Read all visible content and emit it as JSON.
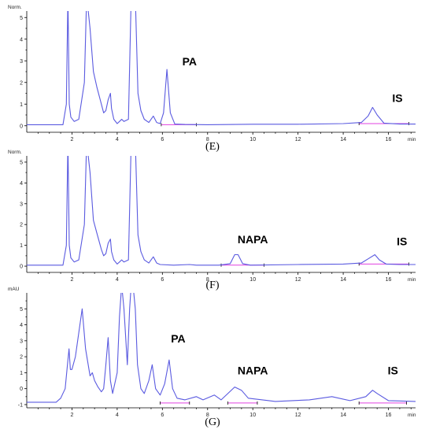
{
  "chart_data": [
    {
      "type": "line",
      "caption": "(E)",
      "ylabel": "Norm.",
      "xlabel": "min",
      "xlim": [
        0,
        17.2
      ],
      "ylim": [
        -0.3,
        5.3
      ],
      "x_ticks": [
        2,
        4,
        6,
        8,
        10,
        12,
        14,
        16
      ],
      "y_ticks": [
        0,
        1,
        2,
        3,
        4,
        5
      ],
      "annotations": [
        {
          "text": "PA",
          "x": 7.2,
          "y": 2.8
        },
        {
          "text": "IS",
          "x": 16.4,
          "y": 1.1
        }
      ],
      "series": [
        {
          "points": [
            [
              0.0,
              0.05
            ],
            [
              1.6,
              0.05
            ],
            [
              1.75,
              1.0
            ],
            [
              1.82,
              6.0
            ],
            [
              1.88,
              1.0
            ],
            [
              1.95,
              0.4
            ],
            [
              2.1,
              0.2
            ],
            [
              2.3,
              0.3
            ],
            [
              2.55,
              2.0
            ],
            [
              2.65,
              6.0
            ],
            [
              2.8,
              4.5
            ],
            [
              2.95,
              2.5
            ],
            [
              3.1,
              1.8
            ],
            [
              3.3,
              1.0
            ],
            [
              3.4,
              0.6
            ],
            [
              3.5,
              0.7
            ],
            [
              3.6,
              1.2
            ],
            [
              3.7,
              1.5
            ],
            [
              3.75,
              0.8
            ],
            [
              3.85,
              0.3
            ],
            [
              4.0,
              0.1
            ],
            [
              4.1,
              0.2
            ],
            [
              4.2,
              0.3
            ],
            [
              4.3,
              0.2
            ],
            [
              4.5,
              0.3
            ],
            [
              4.62,
              6.0
            ],
            [
              4.8,
              6.0
            ],
            [
              4.92,
              1.5
            ],
            [
              5.05,
              0.7
            ],
            [
              5.2,
              0.3
            ],
            [
              5.4,
              0.15
            ],
            [
              5.6,
              0.45
            ],
            [
              5.75,
              0.15
            ],
            [
              5.9,
              0.1
            ],
            [
              6.05,
              0.6
            ],
            [
              6.2,
              2.6
            ],
            [
              6.35,
              0.6
            ],
            [
              6.55,
              0.08
            ],
            [
              7.0,
              0.06
            ],
            [
              8.0,
              0.05
            ],
            [
              10.0,
              0.07
            ],
            [
              12.0,
              0.07
            ],
            [
              14.0,
              0.1
            ],
            [
              14.8,
              0.15
            ],
            [
              15.1,
              0.45
            ],
            [
              15.3,
              0.85
            ],
            [
              15.5,
              0.5
            ],
            [
              15.8,
              0.12
            ],
            [
              16.5,
              0.08
            ],
            [
              17.2,
              0.08
            ]
          ]
        }
      ],
      "baselines": [
        [
          [
            5.95,
            0.05
          ],
          [
            7.5,
            0.05
          ]
        ],
        [
          [
            14.7,
            0.1
          ],
          [
            16.9,
            0.1
          ]
        ]
      ]
    },
    {
      "type": "line",
      "caption": "(F)",
      "ylabel": "Norm.",
      "xlabel": "min",
      "xlim": [
        0,
        17.2
      ],
      "ylim": [
        -0.3,
        5.3
      ],
      "x_ticks": [
        2,
        4,
        6,
        8,
        10,
        12,
        14,
        16
      ],
      "y_ticks": [
        0,
        1,
        2,
        3,
        4,
        5
      ],
      "annotations": [
        {
          "text": "NAPA",
          "x": 10.0,
          "y": 1.1
        },
        {
          "text": "IS",
          "x": 16.6,
          "y": 1.0
        }
      ],
      "series": [
        {
          "points": [
            [
              0.0,
              0.05
            ],
            [
              1.6,
              0.05
            ],
            [
              1.75,
              1.0
            ],
            [
              1.82,
              6.0
            ],
            [
              1.88,
              1.0
            ],
            [
              1.95,
              0.4
            ],
            [
              2.1,
              0.2
            ],
            [
              2.3,
              0.3
            ],
            [
              2.55,
              2.0
            ],
            [
              2.65,
              6.0
            ],
            [
              2.8,
              4.5
            ],
            [
              2.95,
              2.2
            ],
            [
              3.1,
              1.6
            ],
            [
              3.3,
              0.8
            ],
            [
              3.4,
              0.5
            ],
            [
              3.5,
              0.6
            ],
            [
              3.6,
              1.1
            ],
            [
              3.7,
              1.3
            ],
            [
              3.75,
              0.7
            ],
            [
              3.85,
              0.3
            ],
            [
              4.0,
              0.1
            ],
            [
              4.1,
              0.2
            ],
            [
              4.2,
              0.3
            ],
            [
              4.3,
              0.2
            ],
            [
              4.5,
              0.3
            ],
            [
              4.62,
              6.0
            ],
            [
              4.8,
              6.0
            ],
            [
              4.92,
              1.5
            ],
            [
              5.05,
              0.7
            ],
            [
              5.2,
              0.3
            ],
            [
              5.4,
              0.15
            ],
            [
              5.6,
              0.45
            ],
            [
              5.75,
              0.15
            ],
            [
              5.9,
              0.08
            ],
            [
              6.5,
              0.05
            ],
            [
              7.2,
              0.08
            ],
            [
              7.5,
              0.05
            ],
            [
              8.5,
              0.05
            ],
            [
              9.0,
              0.12
            ],
            [
              9.2,
              0.55
            ],
            [
              9.35,
              0.55
            ],
            [
              9.55,
              0.12
            ],
            [
              9.9,
              0.05
            ],
            [
              12.0,
              0.08
            ],
            [
              14.0,
              0.1
            ],
            [
              14.8,
              0.15
            ],
            [
              15.1,
              0.35
            ],
            [
              15.4,
              0.55
            ],
            [
              15.6,
              0.3
            ],
            [
              15.9,
              0.1
            ],
            [
              16.5,
              0.08
            ],
            [
              17.2,
              0.08
            ]
          ]
        }
      ],
      "baselines": [
        [
          [
            8.6,
            0.05
          ],
          [
            10.5,
            0.05
          ]
        ],
        [
          [
            14.7,
            0.1
          ],
          [
            16.9,
            0.1
          ]
        ]
      ]
    },
    {
      "type": "line",
      "caption": "(G)",
      "ylabel": "mAU",
      "xlabel": "min",
      "xlim": [
        0,
        17.2
      ],
      "ylim": [
        -1.2,
        6.0
      ],
      "x_ticks": [
        2,
        4,
        6,
        8,
        10,
        12,
        14,
        16
      ],
      "y_ticks": [
        -1,
        0,
        1,
        2,
        3,
        4,
        5
      ],
      "annotations": [
        {
          "text": "PA",
          "x": 6.7,
          "y": 2.9
        },
        {
          "text": "NAPA",
          "x": 10.0,
          "y": 0.9
        },
        {
          "text": "IS",
          "x": 16.2,
          "y": 0.9
        }
      ],
      "series": [
        {
          "points": [
            [
              0.0,
              -0.85
            ],
            [
              1.3,
              -0.85
            ],
            [
              1.5,
              -0.6
            ],
            [
              1.7,
              0.0
            ],
            [
              1.8,
              1.5
            ],
            [
              1.87,
              2.5
            ],
            [
              1.93,
              1.2
            ],
            [
              2.0,
              1.2
            ],
            [
              2.15,
              2.0
            ],
            [
              2.3,
              3.5
            ],
            [
              2.45,
              5.0
            ],
            [
              2.6,
              2.5
            ],
            [
              2.8,
              0.8
            ],
            [
              2.9,
              1.0
            ],
            [
              3.0,
              0.5
            ],
            [
              3.15,
              0.1
            ],
            [
              3.3,
              -0.2
            ],
            [
              3.4,
              0.0
            ],
            [
              3.5,
              1.5
            ],
            [
              3.6,
              3.2
            ],
            [
              3.7,
              0.5
            ],
            [
              3.8,
              -0.3
            ],
            [
              4.0,
              1.0
            ],
            [
              4.1,
              4.5
            ],
            [
              4.2,
              6.5
            ],
            [
              4.3,
              5.0
            ],
            [
              4.45,
              1.5
            ],
            [
              4.55,
              5.0
            ],
            [
              4.62,
              6.5
            ],
            [
              4.7,
              6.5
            ],
            [
              4.8,
              5.0
            ],
            [
              4.9,
              1.5
            ],
            [
              5.05,
              0.0
            ],
            [
              5.2,
              -0.3
            ],
            [
              5.4,
              0.5
            ],
            [
              5.55,
              1.5
            ],
            [
              5.7,
              0.0
            ],
            [
              5.9,
              -0.4
            ],
            [
              6.1,
              0.3
            ],
            [
              6.3,
              1.8
            ],
            [
              6.45,
              0.0
            ],
            [
              6.65,
              -0.6
            ],
            [
              7.0,
              -0.7
            ],
            [
              7.5,
              -0.5
            ],
            [
              7.8,
              -0.7
            ],
            [
              8.3,
              -0.4
            ],
            [
              8.6,
              -0.7
            ],
            [
              9.2,
              0.1
            ],
            [
              9.5,
              -0.1
            ],
            [
              9.8,
              -0.6
            ],
            [
              11.0,
              -0.8
            ],
            [
              12.5,
              -0.7
            ],
            [
              13.5,
              -0.5
            ],
            [
              14.3,
              -0.75
            ],
            [
              15.0,
              -0.5
            ],
            [
              15.3,
              -0.1
            ],
            [
              15.5,
              -0.3
            ],
            [
              16.0,
              -0.75
            ],
            [
              17.2,
              -0.8
            ]
          ]
        }
      ],
      "baselines": [
        [
          [
            5.9,
            -0.9
          ],
          [
            7.2,
            -0.9
          ]
        ],
        [
          [
            8.9,
            -0.9
          ],
          [
            10.2,
            -0.9
          ]
        ],
        [
          [
            14.7,
            -0.9
          ],
          [
            16.8,
            -0.9
          ]
        ]
      ]
    }
  ]
}
